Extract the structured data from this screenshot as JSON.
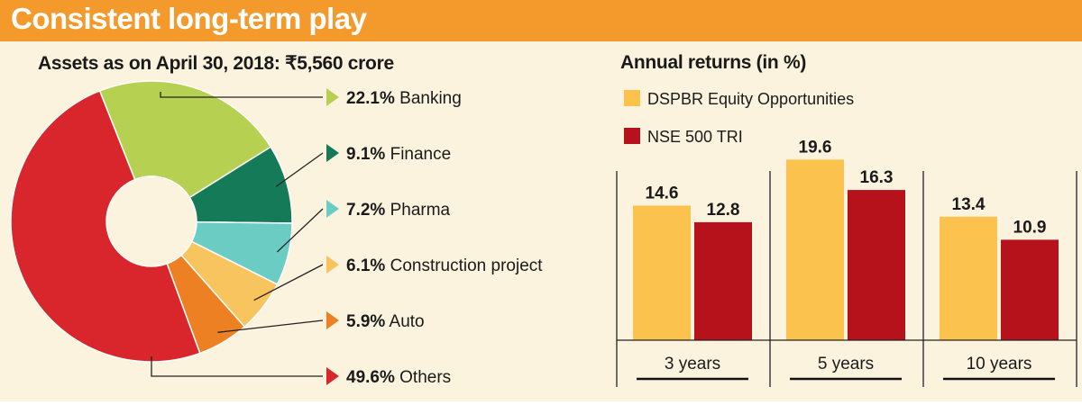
{
  "header": {
    "title": "Consistent long-term play"
  },
  "chart_data": [
    {
      "type": "pie",
      "title": "Assets as on April 30, 2018: ₹5,560 crore",
      "donut": true,
      "slices": [
        {
          "label": "Banking",
          "value": 22.1,
          "display": "22.1%",
          "color": "#b6d152"
        },
        {
          "label": "Finance",
          "value": 9.1,
          "display": "9.1%",
          "color": "#157a57"
        },
        {
          "label": "Pharma",
          "value": 7.2,
          "display": "7.2%",
          "color": "#6bccc3"
        },
        {
          "label": "Construction project",
          "value": 6.1,
          "display": "6.1%",
          "color": "#f8c45e"
        },
        {
          "label": "Auto",
          "value": 5.9,
          "display": "5.9%",
          "color": "#ee8024"
        },
        {
          "label": "Others",
          "value": 49.6,
          "display": "49.6%",
          "color": "#d9262c"
        }
      ]
    },
    {
      "type": "bar",
      "title": "Annual returns (in %)",
      "categories": [
        "3 years",
        "5 years",
        "10 years"
      ],
      "series": [
        {
          "name": "DSPBR Equity Opportunities",
          "values": [
            14.6,
            19.6,
            13.4
          ],
          "labels": [
            "14.6",
            "19.6",
            "13.4"
          ],
          "color": "#fbc24e"
        },
        {
          "name": "NSE 500 TRI",
          "values": [
            12.8,
            16.3,
            10.9
          ],
          "labels": [
            "12.8",
            "16.3",
            "10.9"
          ],
          "color": "#b5121b"
        }
      ],
      "ylim": [
        0,
        22
      ],
      "legend": "top-left"
    }
  ]
}
